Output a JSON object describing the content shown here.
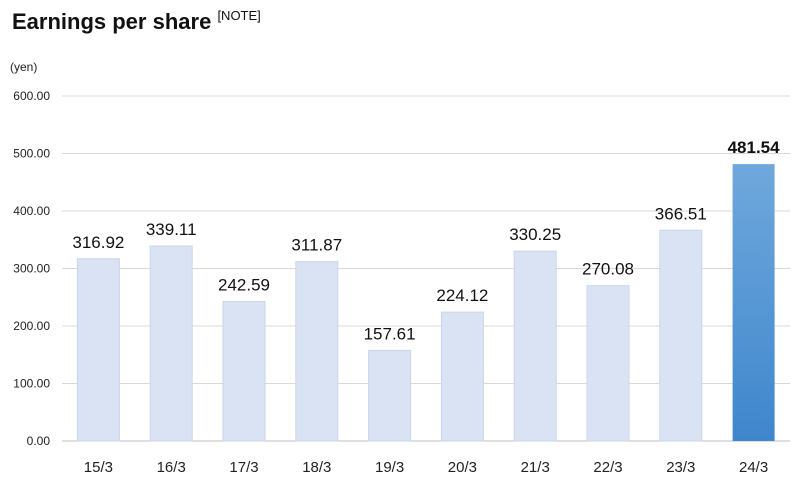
{
  "title": "Earnings per share",
  "title_note": "[NOTE]",
  "chart_data": {
    "type": "bar",
    "title": "Earnings per share",
    "ylabel": "(yen)",
    "xlabel": "",
    "ylim": [
      0,
      600
    ],
    "yticks": [
      "0.00",
      "100.00",
      "200.00",
      "300.00",
      "400.00",
      "500.00",
      "600.00"
    ],
    "grid": true,
    "legend": "none",
    "categories": [
      "15/3",
      "16/3",
      "17/3",
      "18/3",
      "19/3",
      "20/3",
      "21/3",
      "22/3",
      "23/3",
      "24/3"
    ],
    "values": [
      316.92,
      339.11,
      242.59,
      311.87,
      157.61,
      224.12,
      330.25,
      270.08,
      366.51,
      481.54
    ],
    "value_labels": [
      "316.92",
      "339.11",
      "242.59",
      "311.87",
      "157.61",
      "224.12",
      "330.25",
      "270.08",
      "366.51",
      "481.54"
    ],
    "highlight_index": 9,
    "colors": {
      "bar": "#dae3f3",
      "bar_stroke": "#c9d5ea",
      "highlight_top": "#6fa8dc",
      "highlight_bottom": "#3f86cc",
      "grid": "#d9d9d9"
    }
  }
}
